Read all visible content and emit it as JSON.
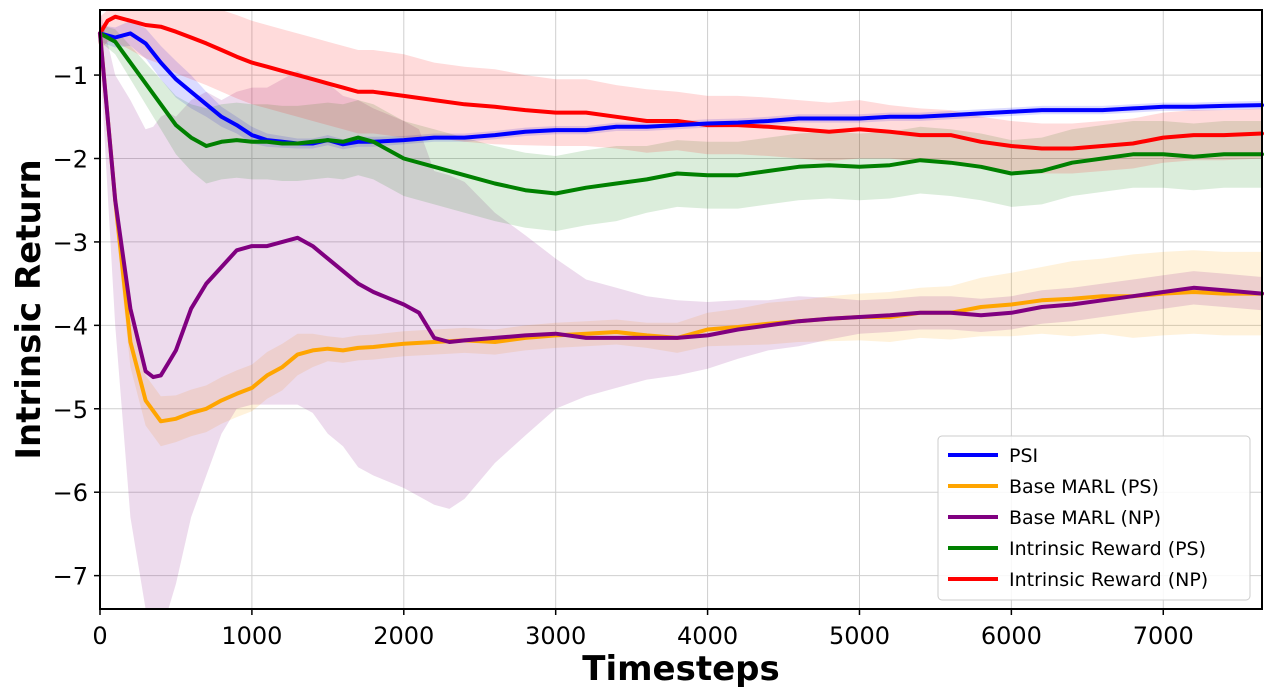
{
  "chart_data": {
    "type": "line",
    "xlabel": "Timesteps",
    "ylabel": "Intrinsic Return",
    "xlim": [
      0,
      7650
    ],
    "ylim": [
      -7.4,
      -0.22
    ],
    "xticks": [
      0,
      1000,
      2000,
      3000,
      4000,
      5000,
      6000,
      7000
    ],
    "yticks": [
      -7,
      -6,
      -5,
      -4,
      -3,
      -2,
      -1
    ],
    "grid": true,
    "legend_position": "lower-right",
    "series": [
      {
        "name": "PSI",
        "color": "#0000ff",
        "x": [
          0,
          100,
          200,
          300,
          400,
          500,
          600,
          700,
          800,
          900,
          1000,
          1100,
          1200,
          1300,
          1400,
          1500,
          1600,
          1700,
          1800,
          2000,
          2200,
          2400,
          2600,
          2800,
          3000,
          3200,
          3400,
          3600,
          3800,
          4000,
          4200,
          4400,
          4600,
          4800,
          5000,
          5200,
          5400,
          5600,
          5800,
          6000,
          6200,
          6400,
          6600,
          6800,
          7000,
          7200,
          7400,
          7650
        ],
        "y": [
          -0.5,
          -0.55,
          -0.5,
          -0.62,
          -0.85,
          -1.05,
          -1.2,
          -1.35,
          -1.5,
          -1.6,
          -1.72,
          -1.78,
          -1.8,
          -1.82,
          -1.82,
          -1.78,
          -1.83,
          -1.8,
          -1.8,
          -1.78,
          -1.75,
          -1.75,
          -1.72,
          -1.68,
          -1.66,
          -1.66,
          -1.62,
          -1.62,
          -1.6,
          -1.58,
          -1.57,
          -1.55,
          -1.52,
          -1.52,
          -1.52,
          -1.5,
          -1.5,
          -1.48,
          -1.46,
          -1.44,
          -1.42,
          -1.42,
          -1.42,
          -1.4,
          -1.38,
          -1.38,
          -1.37,
          -1.36
        ],
        "band": [
          0.1,
          0.12,
          0.15,
          0.18,
          0.2,
          0.22,
          0.2,
          0.15,
          0.12,
          0.1,
          0.1,
          0.08,
          0.07,
          0.06,
          0.06,
          0.06,
          0.06,
          0.06,
          0.06,
          0.05,
          0.05,
          0.05,
          0.05,
          0.05,
          0.05,
          0.05,
          0.05,
          0.05,
          0.05,
          0.05,
          0.05,
          0.05,
          0.05,
          0.05,
          0.05,
          0.05,
          0.05,
          0.05,
          0.05,
          0.05,
          0.05,
          0.05,
          0.05,
          0.05,
          0.05,
          0.05,
          0.05,
          0.05
        ]
      },
      {
        "name": "Base MARL (PS)",
        "color": "#ffa500",
        "x": [
          0,
          100,
          200,
          300,
          400,
          500,
          600,
          700,
          800,
          900,
          1000,
          1100,
          1200,
          1300,
          1400,
          1500,
          1600,
          1700,
          1800,
          2000,
          2200,
          2400,
          2600,
          2800,
          3000,
          3200,
          3400,
          3600,
          3800,
          4000,
          4200,
          4400,
          4600,
          4800,
          5000,
          5200,
          5400,
          5600,
          5800,
          6000,
          6200,
          6400,
          6600,
          6800,
          7000,
          7200,
          7400,
          7650
        ],
        "y": [
          -0.5,
          -2.5,
          -4.2,
          -4.9,
          -5.15,
          -5.12,
          -5.05,
          -5.0,
          -4.9,
          -4.82,
          -4.75,
          -4.6,
          -4.5,
          -4.35,
          -4.3,
          -4.28,
          -4.3,
          -4.27,
          -4.26,
          -4.22,
          -4.2,
          -4.18,
          -4.2,
          -4.15,
          -4.12,
          -4.1,
          -4.08,
          -4.12,
          -4.15,
          -4.05,
          -4.02,
          -3.98,
          -3.95,
          -3.92,
          -3.9,
          -3.9,
          -3.85,
          -3.85,
          -3.78,
          -3.75,
          -3.7,
          -3.68,
          -3.65,
          -3.65,
          -3.62,
          -3.6,
          -3.62,
          -3.62
        ],
        "band": [
          0.15,
          0.25,
          0.3,
          0.3,
          0.3,
          0.28,
          0.28,
          0.28,
          0.28,
          0.28,
          0.28,
          0.28,
          0.28,
          0.25,
          0.2,
          0.15,
          0.15,
          0.15,
          0.15,
          0.15,
          0.15,
          0.15,
          0.15,
          0.15,
          0.15,
          0.15,
          0.15,
          0.15,
          0.18,
          0.2,
          0.22,
          0.25,
          0.25,
          0.27,
          0.28,
          0.3,
          0.3,
          0.32,
          0.35,
          0.38,
          0.4,
          0.45,
          0.45,
          0.5,
          0.5,
          0.5,
          0.5,
          0.5
        ]
      },
      {
        "name": "Base MARL (NP)",
        "color": "#800080",
        "x": [
          0,
          100,
          200,
          300,
          350,
          400,
          450,
          500,
          600,
          700,
          800,
          900,
          1000,
          1100,
          1200,
          1300,
          1400,
          1500,
          1600,
          1700,
          1800,
          2000,
          2100,
          2200,
          2300,
          2400,
          2600,
          2800,
          3000,
          3200,
          3400,
          3600,
          3800,
          4000,
          4200,
          4400,
          4600,
          4800,
          5000,
          5200,
          5400,
          5600,
          5800,
          6000,
          6200,
          6400,
          6600,
          6800,
          7000,
          7200,
          7400,
          7650
        ],
        "y": [
          -0.5,
          -2.5,
          -3.8,
          -4.55,
          -4.62,
          -4.6,
          -4.45,
          -4.3,
          -3.8,
          -3.5,
          -3.3,
          -3.1,
          -3.05,
          -3.05,
          -3.0,
          -2.95,
          -3.05,
          -3.2,
          -3.35,
          -3.5,
          -3.6,
          -3.75,
          -3.85,
          -4.15,
          -4.2,
          -4.18,
          -4.15,
          -4.12,
          -4.1,
          -4.15,
          -4.15,
          -4.15,
          -4.15,
          -4.12,
          -4.05,
          -4.0,
          -3.95,
          -3.92,
          -3.9,
          -3.88,
          -3.85,
          -3.85,
          -3.88,
          -3.85,
          -3.78,
          -3.75,
          -3.7,
          -3.65,
          -3.6,
          -3.55,
          -3.58,
          -3.62
        ],
        "band": [
          0.3,
          1.5,
          2.5,
          2.9,
          3.0,
          3.1,
          3.0,
          2.8,
          2.5,
          2.3,
          2.0,
          1.9,
          1.9,
          1.9,
          1.95,
          2.0,
          2.0,
          2.1,
          2.1,
          2.2,
          2.2,
          2.2,
          2.2,
          2.0,
          2.0,
          1.9,
          1.5,
          1.2,
          0.9,
          0.7,
          0.6,
          0.5,
          0.45,
          0.4,
          0.35,
          0.3,
          0.3,
          0.25,
          0.2,
          0.2,
          0.2,
          0.2,
          0.2,
          0.2,
          0.2,
          0.2,
          0.2,
          0.2,
          0.2,
          0.2,
          0.2,
          0.2
        ]
      },
      {
        "name": "Intrinsic Reward (PS)",
        "color": "#008000",
        "x": [
          0,
          100,
          200,
          300,
          400,
          500,
          600,
          700,
          800,
          900,
          1000,
          1100,
          1200,
          1300,
          1400,
          1500,
          1600,
          1700,
          1800,
          2000,
          2200,
          2400,
          2600,
          2800,
          3000,
          3200,
          3400,
          3600,
          3800,
          4000,
          4200,
          4400,
          4600,
          4800,
          5000,
          5200,
          5400,
          5600,
          5800,
          6000,
          6200,
          6400,
          6600,
          6800,
          7000,
          7200,
          7400,
          7650
        ],
        "y": [
          -0.5,
          -0.6,
          -0.85,
          -1.1,
          -1.35,
          -1.6,
          -1.75,
          -1.85,
          -1.8,
          -1.78,
          -1.8,
          -1.8,
          -1.82,
          -1.82,
          -1.8,
          -1.78,
          -1.8,
          -1.75,
          -1.8,
          -2.0,
          -2.1,
          -2.2,
          -2.3,
          -2.38,
          -2.42,
          -2.35,
          -2.3,
          -2.25,
          -2.18,
          -2.2,
          -2.2,
          -2.15,
          -2.1,
          -2.08,
          -2.1,
          -2.08,
          -2.02,
          -2.05,
          -2.1,
          -2.18,
          -2.15,
          -2.05,
          -2.0,
          -1.95,
          -1.95,
          -1.98,
          -1.95,
          -1.95
        ],
        "band": [
          0.1,
          0.15,
          0.2,
          0.25,
          0.3,
          0.35,
          0.4,
          0.45,
          0.45,
          0.45,
          0.45,
          0.45,
          0.45,
          0.45,
          0.45,
          0.45,
          0.45,
          0.45,
          0.45,
          0.45,
          0.45,
          0.45,
          0.45,
          0.45,
          0.45,
          0.45,
          0.45,
          0.4,
          0.4,
          0.4,
          0.4,
          0.4,
          0.4,
          0.4,
          0.4,
          0.4,
          0.4,
          0.4,
          0.4,
          0.4,
          0.4,
          0.4,
          0.4,
          0.4,
          0.4,
          0.4,
          0.4,
          0.4
        ]
      },
      {
        "name": "Intrinsic Reward (NP)",
        "color": "#ff0000",
        "x": [
          0,
          50,
          100,
          200,
          300,
          400,
          500,
          600,
          700,
          800,
          900,
          1000,
          1100,
          1200,
          1300,
          1400,
          1500,
          1600,
          1700,
          1800,
          2000,
          2200,
          2400,
          2600,
          2800,
          3000,
          3200,
          3400,
          3600,
          3800,
          4000,
          4200,
          4400,
          4600,
          4800,
          5000,
          5200,
          5400,
          5600,
          5800,
          6000,
          6200,
          6400,
          6600,
          6800,
          7000,
          7200,
          7400,
          7650
        ],
        "y": [
          -0.5,
          -0.35,
          -0.3,
          -0.35,
          -0.4,
          -0.42,
          -0.48,
          -0.55,
          -0.62,
          -0.7,
          -0.78,
          -0.85,
          -0.9,
          -0.95,
          -1.0,
          -1.05,
          -1.1,
          -1.15,
          -1.2,
          -1.2,
          -1.25,
          -1.3,
          -1.35,
          -1.38,
          -1.42,
          -1.45,
          -1.45,
          -1.5,
          -1.55,
          -1.55,
          -1.6,
          -1.6,
          -1.62,
          -1.65,
          -1.68,
          -1.65,
          -1.68,
          -1.72,
          -1.72,
          -1.8,
          -1.85,
          -1.88,
          -1.88,
          -1.85,
          -1.82,
          -1.75,
          -1.72,
          -1.72,
          -1.7
        ],
        "band": [
          0.2,
          0.25,
          0.3,
          0.35,
          0.4,
          0.45,
          0.5,
          0.5,
          0.5,
          0.5,
          0.5,
          0.5,
          0.5,
          0.5,
          0.5,
          0.5,
          0.5,
          0.5,
          0.5,
          0.5,
          0.5,
          0.45,
          0.45,
          0.45,
          0.42,
          0.4,
          0.4,
          0.38,
          0.38,
          0.35,
          0.35,
          0.35,
          0.35,
          0.35,
          0.35,
          0.35,
          0.32,
          0.32,
          0.3,
          0.3,
          0.3,
          0.3,
          0.3,
          0.3,
          0.3,
          0.3,
          0.3,
          0.3,
          0.3
        ]
      }
    ]
  }
}
